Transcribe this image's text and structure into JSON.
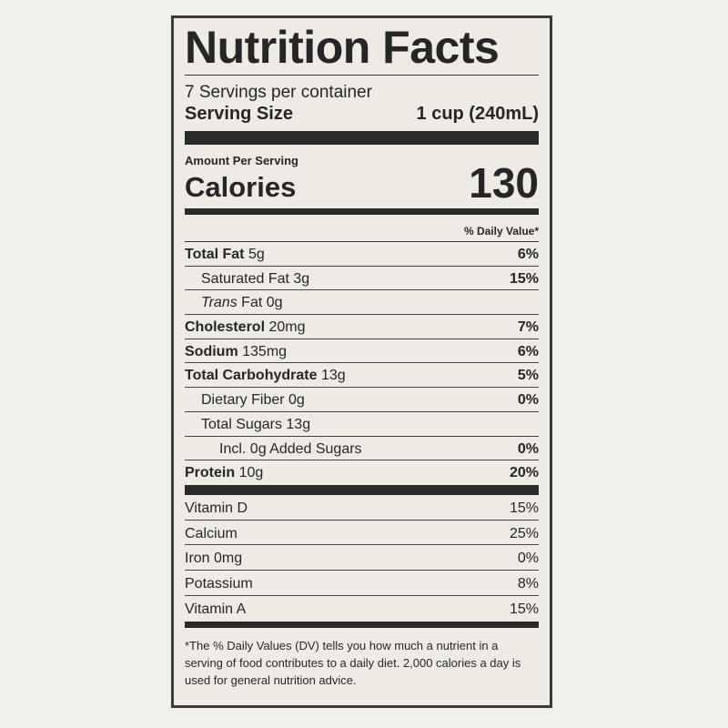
{
  "title": "Nutrition Facts",
  "servings_per_container": "7 Servings per container",
  "serving_size": {
    "label": "Serving Size",
    "value": "1 cup (240mL)"
  },
  "amount_per_serving": "Amount Per Serving",
  "calories": {
    "label": "Calories",
    "value": "130"
  },
  "daily_value_header": "% Daily Value*",
  "nutrients": [
    {
      "name": "Total Fat",
      "amount": "5g",
      "dv": "6%",
      "bold": true,
      "indent": 0
    },
    {
      "name": "Saturated Fat",
      "amount": "3g",
      "dv": "15%",
      "bold": false,
      "indent": 1
    },
    {
      "name": "Trans",
      "suffix": "Fat 0g",
      "dv": "",
      "bold": false,
      "indent": 1
    },
    {
      "name": "Cholesterol",
      "amount": "20mg",
      "dv": "7%",
      "bold": true,
      "indent": 0
    },
    {
      "name": "Sodium",
      "amount": "135mg",
      "dv": "6%",
      "bold": true,
      "indent": 0
    },
    {
      "name": "Total Carbohydrate",
      "amount": "13g",
      "dv": "5%",
      "bold": true,
      "indent": 0
    },
    {
      "name": "Dietary Fiber",
      "amount": "0g",
      "dv": "0%",
      "bold": false,
      "indent": 1
    },
    {
      "name": "Total Sugars",
      "amount": "13g",
      "dv": "",
      "bold": false,
      "indent": 1
    },
    {
      "name": "Incl. 0g Added Sugars",
      "amount": "",
      "dv": "0%",
      "bold": false,
      "indent": 2
    },
    {
      "name": "Protein",
      "amount": "10g",
      "dv": "20%",
      "bold": true,
      "indent": 0
    }
  ],
  "vitamins": [
    {
      "name": "Vitamin D",
      "dv": "15%"
    },
    {
      "name": "Calcium",
      "dv": "25%"
    },
    {
      "name": "Iron 0mg",
      "dv": "0%"
    },
    {
      "name": "Potassium",
      "dv": "8%"
    },
    {
      "name": "Vitamin A",
      "dv": "15%"
    }
  ],
  "footnote": "*The % Daily Values (DV) tells you how much a nutrient in a serving of food contributes to a daily diet. 2,000 calories a day is used for general nutrition advice."
}
